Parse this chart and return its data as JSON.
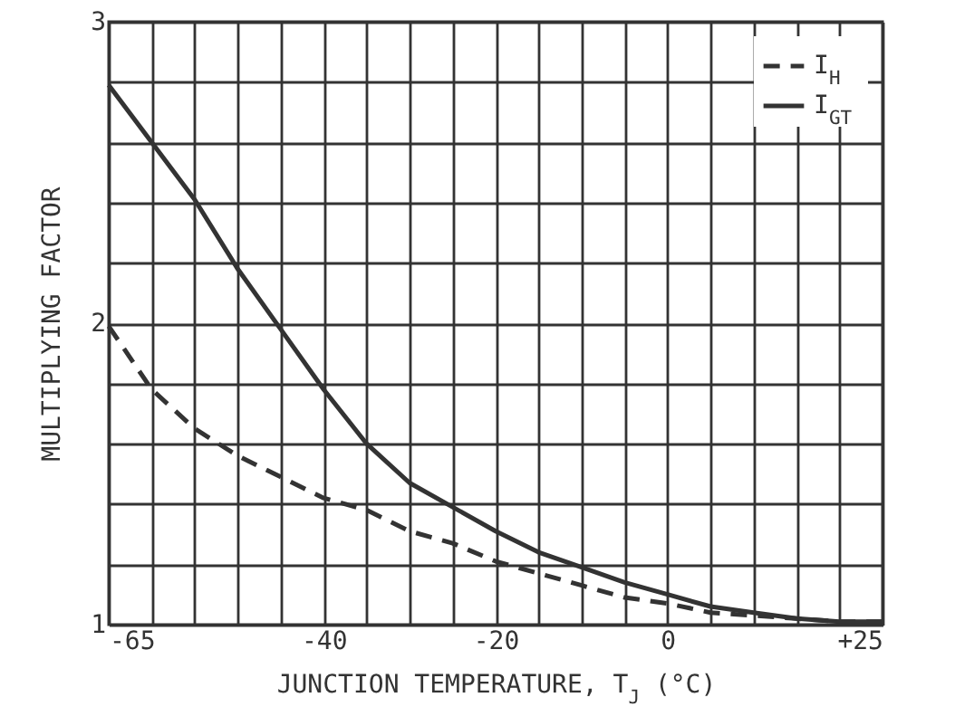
{
  "chart_data": {
    "type": "line",
    "xlabel": "JUNCTION TEMPERATURE, T$_{J}$ (°C)",
    "ylabel": "MULTIPLYING FACTOR",
    "x": [
      -65,
      -60,
      -55,
      -50,
      -45,
      -40,
      -35,
      -30,
      -25,
      -20,
      -15,
      -10,
      -5,
      0,
      5,
      10,
      15,
      20,
      25
    ],
    "series": [
      {
        "name": "I$_{H}$",
        "color": "#333333",
        "line_style": "dashed",
        "values": [
          1.99,
          1.78,
          1.65,
          1.56,
          1.49,
          1.42,
          1.38,
          1.31,
          1.27,
          1.21,
          1.17,
          1.13,
          1.09,
          1.07,
          1.04,
          1.03,
          1.02,
          1.01,
          1.01
        ]
      },
      {
        "name": "I$_{GT}$",
        "color": "#333333",
        "line_style": "solid",
        "values": [
          2.79,
          2.6,
          2.41,
          2.18,
          1.98,
          1.78,
          1.6,
          1.47,
          1.39,
          1.31,
          1.24,
          1.19,
          1.14,
          1.1,
          1.06,
          1.04,
          1.02,
          1.01,
          1.01
        ]
      }
    ],
    "xlim": [
      -65,
      25
    ],
    "ylim": [
      1,
      3
    ],
    "xticks": [
      -65,
      {
        "value": -60,
        "label": null
      },
      {
        "value": -55,
        "label": null
      },
      {
        "value": -50,
        "label": null
      },
      {
        "value": -45,
        "label": null
      },
      -40,
      {
        "value": -35,
        "label": null
      },
      {
        "value": -30,
        "label": null
      },
      {
        "value": -25,
        "label": null
      },
      -20,
      {
        "value": -15,
        "label": null
      },
      {
        "value": -10,
        "label": null
      },
      {
        "value": -5,
        "label": null
      },
      0,
      {
        "value": 5,
        "label": null
      },
      {
        "value": 10,
        "label": null
      },
      {
        "value": 15,
        "label": null
      },
      {
        "value": 20,
        "label": null
      },
      {
        "value": 25,
        "label": "+25"
      }
    ],
    "yticks": [
      1,
      {
        "value": 1.2,
        "label": null
      },
      {
        "value": 1.4,
        "label": null
      },
      {
        "value": 1.6,
        "label": null
      },
      {
        "value": 1.8,
        "label": null
      },
      2,
      {
        "value": 2.2,
        "label": null
      },
      {
        "value": 2.4,
        "label": null
      },
      {
        "value": 2.6,
        "label": null
      },
      {
        "value": 2.8,
        "label": null
      },
      3
    ],
    "grid": true,
    "legend": "top right",
    "marker": "none"
  }
}
